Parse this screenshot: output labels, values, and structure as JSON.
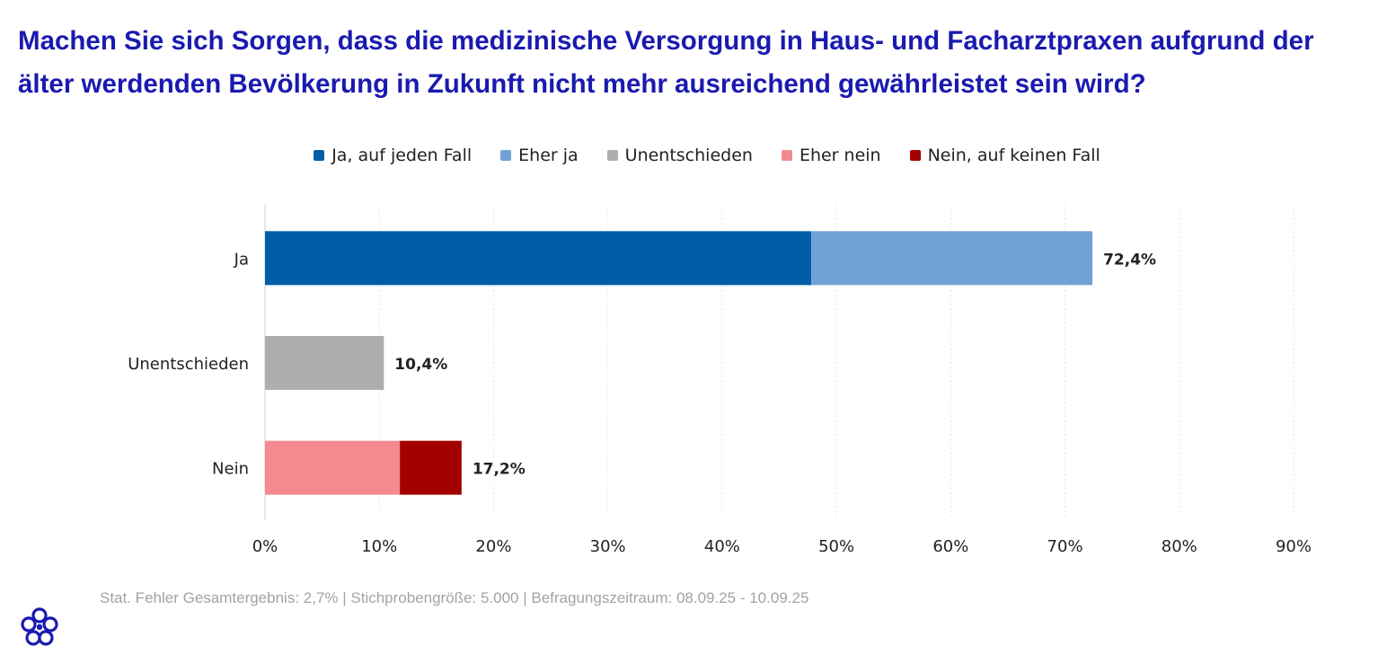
{
  "chart_data": {
    "type": "bar",
    "orientation": "horizontal",
    "stacked": true,
    "title": "Machen Sie sich Sorgen, dass die medizinische Versorgung in Haus- und Facharztpraxen aufgrund der älter werdenden Bevölkerung in Zukunft nicht mehr ausreichend gewährleistet sein wird?",
    "categories": [
      "Ja",
      "Unentschieden",
      "Nein"
    ],
    "series": [
      {
        "name": "Ja, auf jeden Fall",
        "color": "#005da6",
        "values": [
          47.8,
          0,
          0
        ]
      },
      {
        "name": "Eher ja",
        "color": "#71a2d6",
        "values": [
          24.6,
          0,
          0
        ]
      },
      {
        "name": "Unentschieden",
        "color": "#aeaeae",
        "values": [
          0,
          10.4,
          0
        ]
      },
      {
        "name": "Eher nein",
        "color": "#f28a8f",
        "values": [
          0,
          0,
          11.8
        ]
      },
      {
        "name": "Nein, auf keinen Fall",
        "color": "#a30000",
        "values": [
          0,
          0,
          5.4
        ]
      }
    ],
    "totals": [
      "72,4%",
      "10,4%",
      "17,2%"
    ],
    "x_ticks": [
      "0%",
      "10%",
      "20%",
      "30%",
      "40%",
      "50%",
      "60%",
      "70%",
      "80%",
      "90%"
    ],
    "xlim": [
      0,
      90
    ],
    "grid": true,
    "legend_position": "top-center"
  },
  "footnote": "Stat. Fehler Gesamtergebnis: 2,7% | Stichprobengröße: 5.000 | Befragungszeitraum: 08.09.25 - 10.09.25",
  "logo_icon": "flower-logo-icon"
}
